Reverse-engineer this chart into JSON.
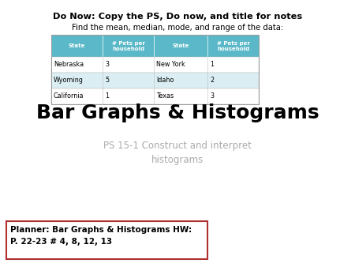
{
  "do_now_bold": "Do Now: Copy the PS, Do now, and title for notes",
  "do_now_sub": "Find the mean, median, mode, and range of the data:",
  "table_header_color": "#5bb8c8",
  "table_row_colors": [
    "#ffffff",
    "#daeef3",
    "#ffffff"
  ],
  "table_col_headers": [
    "State",
    "# Pets per\nhousehold",
    "State",
    "# Pets per\nhousehold"
  ],
  "table_data": [
    [
      "Nebraska",
      "3",
      "New York",
      "1"
    ],
    [
      "Wyoming",
      "5",
      "Idaho",
      "2"
    ],
    [
      "California",
      "1",
      "Texas",
      "3"
    ]
  ],
  "main_title": "Bar Graphs & Histograms",
  "subtitle": "PS 15-1 Construct and interpret\nhistograms",
  "planner_text": "Planner: Bar Graphs & Histograms HW:\nP. 22-23 # 4, 8, 12, 13",
  "background_color": "#ffffff",
  "header_text_color": "#ffffff",
  "body_text_color": "#000000",
  "subtitle_color": "#aaaaaa",
  "planner_border_color": "#b03030"
}
